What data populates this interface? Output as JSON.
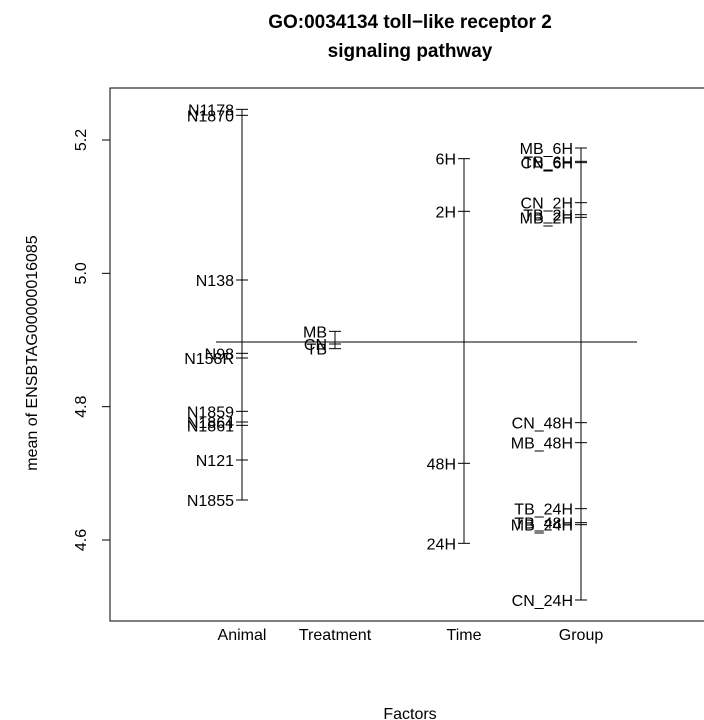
{
  "chart_data": {
    "type": "plot.design",
    "title_lines": [
      "GO:0034134 toll−like receptor 2",
      "signaling pathway"
    ],
    "xlabel": "Factors",
    "ylabel": "mean of ENSBTAG00000016085",
    "ylim": [
      4.45,
      5.33
    ],
    "yticks": [
      "4.6",
      "4.8",
      "5.0",
      "5.2"
    ],
    "grand_mean": 4.897,
    "factors": [
      {
        "name": "Animal",
        "levels": [
          {
            "label": "N1178",
            "value": 5.246
          },
          {
            "label": "N1870",
            "value": 5.237
          },
          {
            "label": "N138",
            "value": 4.99
          },
          {
            "label": "N98",
            "value": 4.88
          },
          {
            "label": "N158R",
            "value": 4.873
          },
          {
            "label": "N1859",
            "value": 4.793
          },
          {
            "label": "N1864",
            "value": 4.777
          },
          {
            "label": "N1861",
            "value": 4.772
          },
          {
            "label": "N121",
            "value": 4.72
          },
          {
            "label": "N1855",
            "value": 4.66
          }
        ]
      },
      {
        "name": "Treatment",
        "levels": [
          {
            "label": "MB",
            "value": 4.913
          },
          {
            "label": "CN",
            "value": 4.894
          },
          {
            "label": "TB",
            "value": 4.887
          }
        ]
      },
      {
        "name": "Time",
        "levels": [
          {
            "label": "6H",
            "value": 5.172
          },
          {
            "label": "2H",
            "value": 5.093
          },
          {
            "label": "48H",
            "value": 4.715
          },
          {
            "label": "24H",
            "value": 4.595
          }
        ]
      },
      {
        "name": "Group",
        "levels": [
          {
            "label": "MB_6H",
            "value": 5.188
          },
          {
            "label": "TB_6H",
            "value": 5.168
          },
          {
            "label": "CN_6H",
            "value": 5.166
          },
          {
            "label": "CN_2H",
            "value": 5.106
          },
          {
            "label": "TB_2H",
            "value": 5.088
          },
          {
            "label": "MB_2H",
            "value": 5.084
          },
          {
            "label": "CN_48H",
            "value": 4.776
          },
          {
            "label": "MB_48H",
            "value": 4.746
          },
          {
            "label": "TB_24H",
            "value": 4.647
          },
          {
            "label": "TB_48H",
            "value": 4.626
          },
          {
            "label": "MB_24H",
            "value": 4.623
          },
          {
            "label": "CN_24H",
            "value": 4.51
          }
        ]
      }
    ]
  }
}
